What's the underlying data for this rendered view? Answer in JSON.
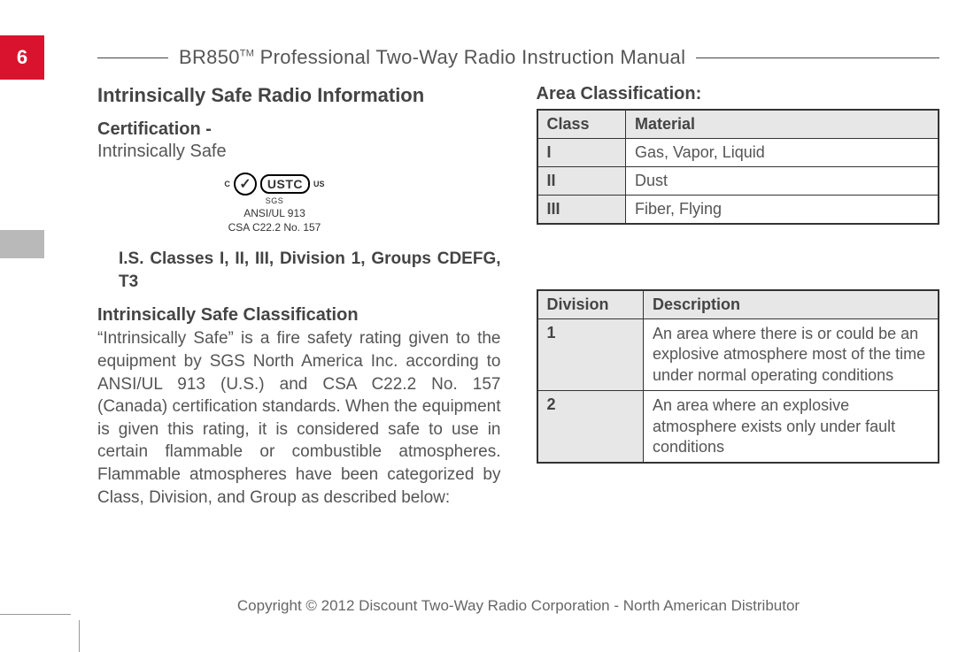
{
  "page_number": "6",
  "header_title_prefix": "BR850",
  "header_title_tm": "TM",
  "header_title_rest": " Professional Two-Way Radio Instruction Manual",
  "section_title": "Intrinsically Safe Radio Information",
  "cert_heading": "Certification -",
  "cert_sub": "Intrinsically Safe",
  "cert_logo_check": "✓",
  "cert_logo_text": "USTC",
  "cert_logo_side_c": "C",
  "cert_logo_side_us": "US",
  "cert_logo_sgs": "SGS",
  "cert_line1": "ANSI/UL 913",
  "cert_line2": "CSA C22.2 No. 157",
  "rating_line": "I.S. Classes I, II, III, Division 1, Groups CDEFG, T3",
  "classif_heading": "Intrinsically Safe Classification",
  "classif_para": "“Intrinsically Safe” is a fire safety rating given to the equipment by SGS North America Inc. according to ANSI/UL 913 (U.S.) and CSA C22.2 No. 157 (Canada) certification standards. When the equipment is given this rating, it is considered safe to use in certain flammable or combustible atmospheres. Flammable atmospheres have been categorized by Class, Division, and Group as described below:",
  "area_heading": "Area Classification:",
  "class_table": {
    "cols": [
      "Class",
      "Material"
    ],
    "rows": [
      [
        "I",
        "Gas, Vapor, Liquid"
      ],
      [
        "II",
        "Dust"
      ],
      [
        "III",
        "Fiber, Flying"
      ]
    ]
  },
  "division_table": {
    "cols": [
      "Division",
      "Description"
    ],
    "rows": [
      [
        "1",
        "An area where there is or could be an explosive atmosphere most of the time under normal operating conditions"
      ],
      [
        "2",
        "An area where an explosive atmosphere exists only under fault conditions"
      ]
    ]
  },
  "footer": "Copyright © 2012 Discount Two-Way Radio Corporation - North American Distributor",
  "colors": {
    "red": "#d9132e",
    "grey": "#b9b9b9",
    "cell_grey": "#e7e7e7",
    "text": "#555555",
    "heading": "#444444",
    "border": "#333333"
  }
}
